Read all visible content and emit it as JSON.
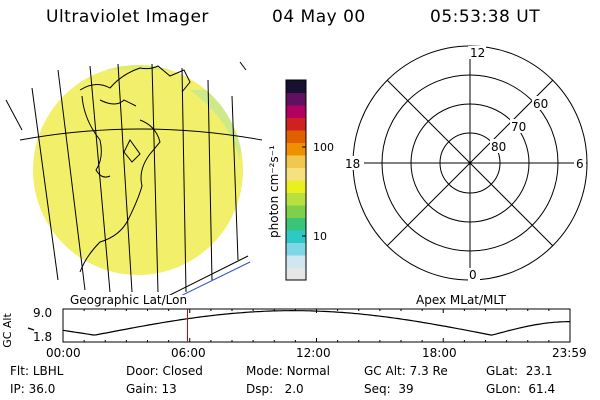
{
  "header": {
    "instrument": "Ultraviolet Imager",
    "date": "04 May 00",
    "time": "05:53:38 UT"
  },
  "colorbar": {
    "unit_label": "photon cm⁻²s⁻¹",
    "tick_100": "100",
    "tick_10": "10",
    "colors": [
      "#e6e6e6",
      "#cfe8f0",
      "#7fd6e6",
      "#2ec8c8",
      "#39c47a",
      "#7ed04a",
      "#b8e040",
      "#e8f020",
      "#f6e080",
      "#f0c850",
      "#f09000",
      "#e06000",
      "#d02020",
      "#b00060",
      "#601060",
      "#181030"
    ]
  },
  "polar": {
    "label_12": "12",
    "label_18": "18",
    "label_6": "6",
    "label_0": "0",
    "label_60": "60",
    "label_70": "70",
    "label_80": "80",
    "caption": "Apex MLat/MLT"
  },
  "geo": {
    "caption": "Geographic Lat/Lon",
    "disk_color": "#f2f06a"
  },
  "timeline": {
    "ylabel": "GC Alt",
    "ymax": "9.0",
    "ymin": "1.8",
    "ticks": [
      "00:00",
      "06:00",
      "12:00",
      "18:00",
      "23:59"
    ],
    "marker_hour": 5.894,
    "marker_color": "#d00000"
  },
  "info": {
    "flt_label": "Flt:",
    "flt_value": "LBHL",
    "ip_label": "IP:",
    "ip_value": "36.0",
    "door_label": "Door:",
    "door_value": "Closed",
    "gain_label": "Gain:",
    "gain_value": "13",
    "mode_label": "Mode:",
    "mode_value": "Normal",
    "dsp_label": "Dsp:",
    "dsp_value": "2.0",
    "gcalt_label": "GC Alt:",
    "gcalt_value": "7.3 Re",
    "seq_label": "Seq:",
    "seq_value": "39",
    "glat_label": "GLat:",
    "glat_value": "23.1",
    "glon_label": "GLon:",
    "glon_value": "61.4"
  }
}
